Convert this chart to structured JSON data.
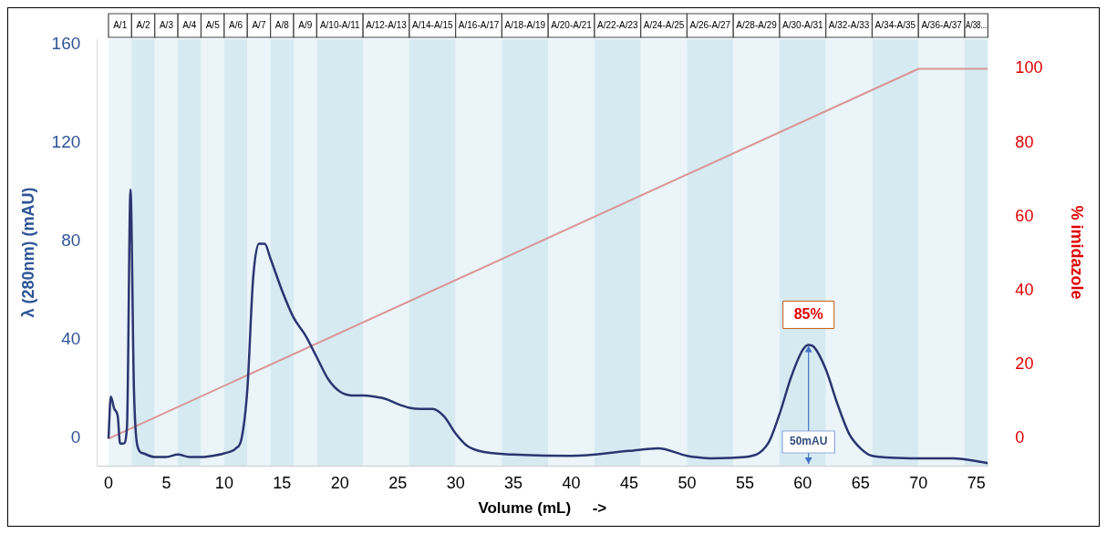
{
  "chart_data": {
    "type": "line",
    "xlabel": "Volume (mL)     ->",
    "ylabel": "λ (280nm) (mAU)",
    "y2label": "% imidazole",
    "xlim": [
      -1,
      76
    ],
    "xticks": [
      0,
      5,
      10,
      15,
      20,
      25,
      30,
      35,
      40,
      45,
      50,
      55,
      60,
      65,
      70,
      75
    ],
    "ylim": [
      -11,
      162
    ],
    "yticks": [
      0,
      40,
      80,
      120,
      160
    ],
    "y2lim": [
      -7.3,
      108
    ],
    "y2ticks": [
      0,
      20,
      40,
      60,
      80,
      100
    ],
    "marker": "none",
    "grid": false,
    "legend": false,
    "series": [
      {
        "color": "#2b3570",
        "x": [
          0,
          0.2,
          0.5,
          0.8,
          1.0,
          1.3,
          1.6,
          1.9,
          2.2,
          2.5,
          3,
          4,
          5,
          6,
          7,
          8,
          9,
          10,
          11,
          11.5,
          12,
          12.5,
          13,
          13.5,
          14,
          15,
          16,
          17,
          18,
          19,
          20,
          21,
          22,
          23,
          24,
          25,
          26,
          27,
          28,
          29,
          30,
          31,
          32,
          35,
          40,
          45,
          47.5,
          50,
          52,
          55,
          57,
          58,
          59,
          60,
          60.5,
          61,
          62,
          63,
          64,
          65,
          66,
          70,
          73,
          76
        ],
        "values": [
          0,
          17,
          12,
          9,
          -2,
          -2,
          5,
          101,
          20,
          -3,
          -6,
          -7.5,
          -7.5,
          -6.5,
          -7.5,
          -7.5,
          -7,
          -6,
          -4,
          0,
          20,
          65,
          79,
          79,
          73,
          60,
          49,
          42,
          33,
          24,
          19,
          17.5,
          17.5,
          17,
          16,
          14,
          12.5,
          12,
          12,
          9,
          2,
          -3,
          -5,
          -6.5,
          -7,
          -5,
          -4,
          -7,
          -8,
          -7.5,
          -2,
          10,
          25,
          36,
          38,
          37,
          28,
          14,
          2,
          -4,
          -7,
          -8,
          -8,
          -10
        ]
      },
      {
        "color": "#d99694",
        "axis": "y2",
        "x": [
          0,
          70,
          76
        ],
        "values": [
          0,
          100,
          100
        ]
      }
    ],
    "bands": [
      {
        "axis": "x",
        "from": 0,
        "to": 2,
        "label": "A/1",
        "color": "#eaf4f9"
      },
      {
        "axis": "x",
        "from": 2,
        "to": 4,
        "label": "A/2",
        "color": "#d6eaf2"
      },
      {
        "axis": "x",
        "from": 4,
        "to": 6,
        "label": "A/3",
        "color": "#eaf4f9"
      },
      {
        "axis": "x",
        "from": 6,
        "to": 8,
        "label": "A/4",
        "color": "#d6eaf2"
      },
      {
        "axis": "x",
        "from": 8,
        "to": 10,
        "label": "A/5",
        "color": "#eaf4f9"
      },
      {
        "axis": "x",
        "from": 10,
        "to": 12,
        "label": "A/6",
        "color": "#d6eaf2"
      },
      {
        "axis": "x",
        "from": 12,
        "to": 14,
        "label": "A/7",
        "color": "#eaf4f9"
      },
      {
        "axis": "x",
        "from": 14,
        "to": 16,
        "label": "A/8",
        "color": "#d6eaf2"
      },
      {
        "axis": "x",
        "from": 16,
        "to": 18,
        "label": "A/9",
        "color": "#eaf4f9"
      },
      {
        "axis": "x",
        "from": 18,
        "to": 22,
        "label": "A/10-A/11",
        "color": "#d6eaf2"
      },
      {
        "axis": "x",
        "from": 22,
        "to": 26,
        "label": "A/12-A/13",
        "color": "#eaf4f9"
      },
      {
        "axis": "x",
        "from": 26,
        "to": 30,
        "label": "A/14-A/15",
        "color": "#d6eaf2"
      },
      {
        "axis": "x",
        "from": 30,
        "to": 34,
        "label": "A/16-A/17",
        "color": "#eaf4f9"
      },
      {
        "axis": "x",
        "from": 34,
        "to": 38,
        "label": "A/18-A/19",
        "color": "#d6eaf2"
      },
      {
        "axis": "x",
        "from": 38,
        "to": 42,
        "label": "A/20-A/21",
        "color": "#eaf4f9"
      },
      {
        "axis": "x",
        "from": 42,
        "to": 46,
        "label": "A/22-A/23",
        "color": "#d6eaf2"
      },
      {
        "axis": "x",
        "from": 46,
        "to": 50,
        "label": "A/24-A/25",
        "color": "#eaf4f9"
      },
      {
        "axis": "x",
        "from": 50,
        "to": 54,
        "label": "A/26-A/27",
        "color": "#d6eaf2"
      },
      {
        "axis": "x",
        "from": 54,
        "to": 58,
        "label": "A/28-A/29",
        "color": "#eaf4f9"
      },
      {
        "axis": "x",
        "from": 58,
        "to": 62,
        "label": "A/30-A/31",
        "color": "#d6eaf2"
      },
      {
        "axis": "x",
        "from": 62,
        "to": 66,
        "label": "A/32-A/33",
        "color": "#eaf4f9"
      },
      {
        "axis": "x",
        "from": 66,
        "to": 70,
        "label": "A/34-A/35",
        "color": "#d6eaf2"
      },
      {
        "axis": "x",
        "from": 70,
        "to": 74,
        "label": "A/36-A/37",
        "color": "#eaf4f9"
      },
      {
        "axis": "x",
        "from": 74,
        "to": 76,
        "label": "A/38...",
        "color": "#d6eaf2"
      }
    ],
    "annotations": [
      {
        "text": "85%",
        "x": 60.5,
        "y": 38
      },
      "50mAU"
    ]
  }
}
